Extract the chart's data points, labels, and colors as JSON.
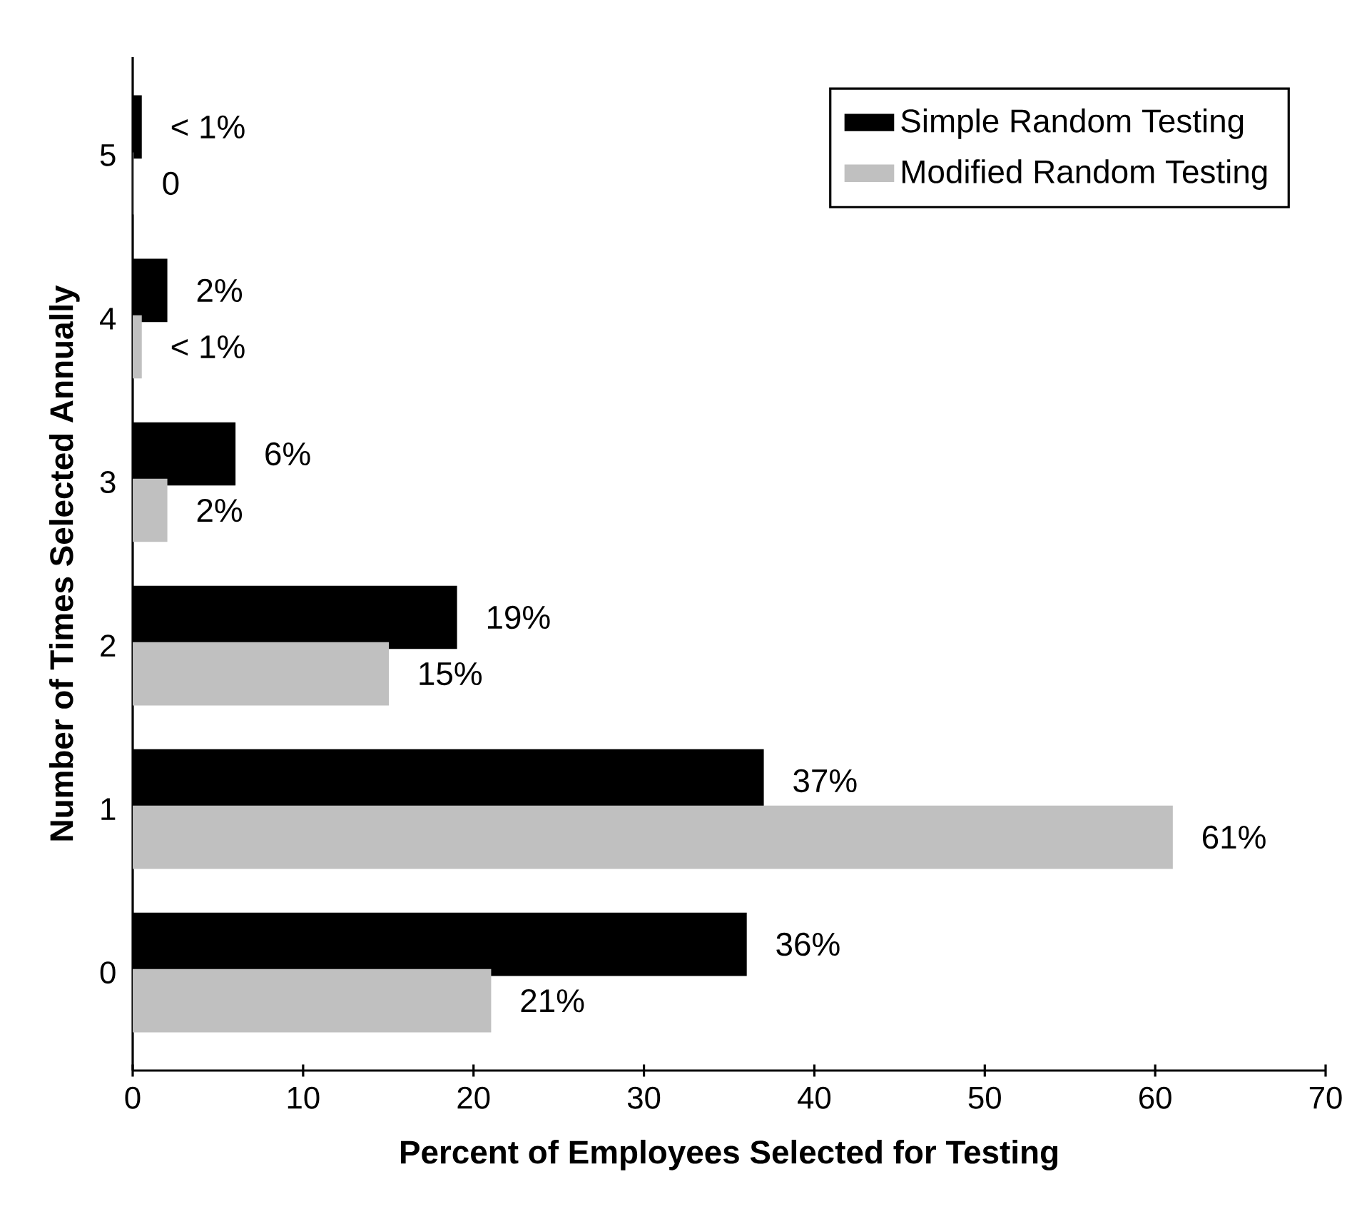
{
  "chart_data": {
    "type": "bar",
    "orientation": "horizontal",
    "xlabel": "Percent of Employees Selected for Testing",
    "ylabel": "Number of Times Selected Annually",
    "categories": [
      "5",
      "4",
      "3",
      "2",
      "1",
      "0"
    ],
    "series": [
      {
        "name": "Simple Random Testing",
        "color": "#000000",
        "values": [
          0.5,
          2,
          6,
          19,
          37,
          36
        ],
        "value_labels": [
          "< 1%",
          "2%",
          "6%",
          "19%",
          "37%",
          "36%"
        ]
      },
      {
        "name": "Modified Random Testing",
        "color": "#c0c0c0",
        "values": [
          0,
          0.5,
          2,
          15,
          61,
          21
        ],
        "value_labels": [
          "0",
          "< 1%",
          "2%",
          "15%",
          "61%",
          "21%"
        ]
      }
    ],
    "xlim": [
      0,
      70
    ],
    "xticks": [
      0,
      10,
      20,
      30,
      40,
      50,
      60,
      70
    ],
    "legend": "top right"
  }
}
